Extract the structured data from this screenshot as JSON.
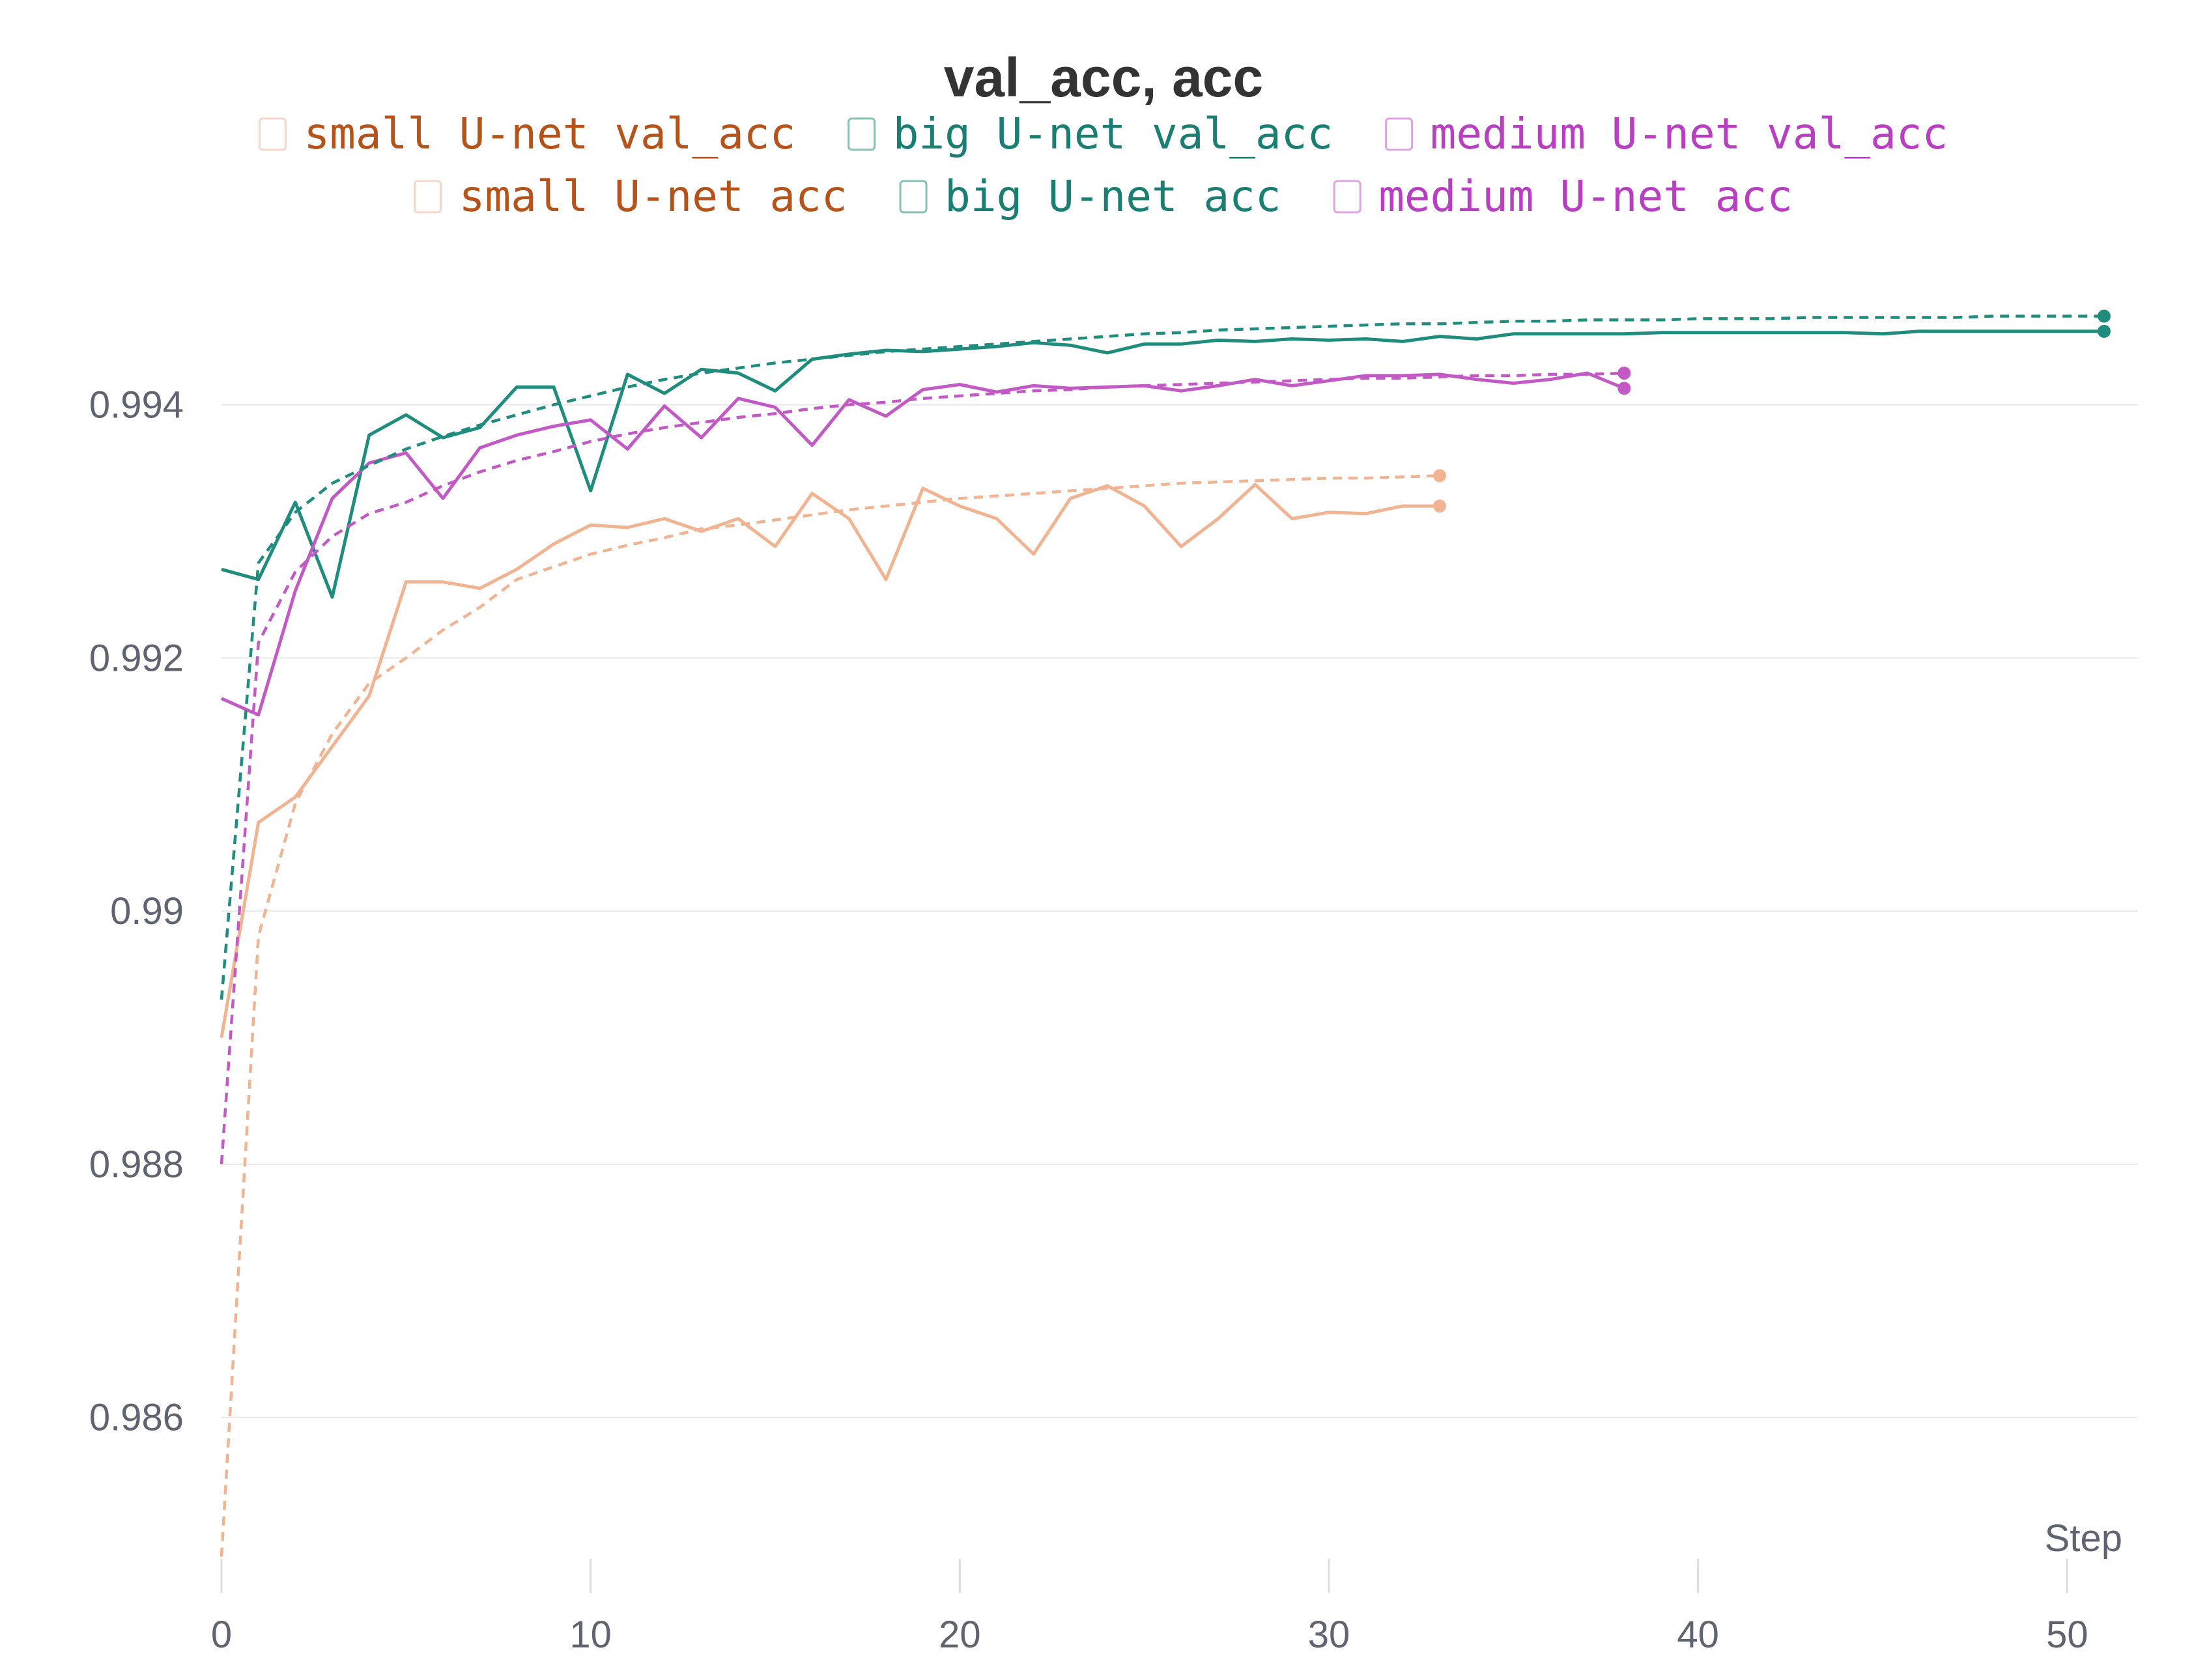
{
  "chart_data": {
    "type": "line",
    "title": "val_acc, acc",
    "xlabel": "Step",
    "ylabel": "",
    "xlim": [
      0,
      51
    ],
    "ylim": [
      0.9848,
      0.9955
    ],
    "x_ticks": [
      0,
      10,
      20,
      30,
      40,
      50
    ],
    "y_ticks": [
      0.986,
      0.988,
      0.99,
      0.992,
      0.994
    ],
    "y_tick_labels": [
      "0.986",
      "0.988",
      "0.99",
      "0.992",
      "0.994"
    ],
    "grid": "horizontal",
    "legend_position": "top",
    "series": [
      {
        "name": "small U-net val_acc",
        "color": "#f0b493",
        "text_color": "#b5531b",
        "dash": "solid",
        "x": [
          0,
          1,
          2,
          3,
          4,
          5,
          6,
          7,
          8,
          9,
          10,
          11,
          12,
          13,
          14,
          15,
          16,
          17,
          18,
          19,
          20,
          21,
          22,
          23,
          24,
          25,
          26,
          27,
          28,
          29,
          30,
          31,
          32,
          33
        ],
        "y": [
          0.989,
          0.9907,
          0.9909,
          0.9913,
          0.9917,
          0.9926,
          0.9926,
          0.99255,
          0.9927,
          0.9929,
          0.99305,
          0.99303,
          0.9931,
          0.993,
          0.9931,
          0.99288,
          0.9933,
          0.9931,
          0.99262,
          0.99334,
          0.9932,
          0.9931,
          0.99282,
          0.99326,
          0.99336,
          0.9932,
          0.99288,
          0.9931,
          0.99337,
          0.9931,
          0.99315,
          0.99314,
          0.9932,
          0.9932
        ]
      },
      {
        "name": "big U-net val_acc",
        "color": "#1f8c7e",
        "text_color": "#1a7f72",
        "dash": "solid",
        "x": [
          0,
          1,
          2,
          3,
          4,
          5,
          6,
          7,
          8,
          9,
          10,
          11,
          12,
          13,
          14,
          15,
          16,
          17,
          18,
          19,
          20,
          21,
          22,
          23,
          24,
          25,
          26,
          27,
          28,
          29,
          30,
          31,
          32,
          33,
          34,
          35,
          36,
          37,
          38,
          39,
          40,
          41,
          42,
          43,
          44,
          45,
          46,
          47,
          48,
          49,
          50,
          51
        ],
        "y": [
          0.9927,
          0.99262,
          0.99323,
          0.99248,
          0.99376,
          0.99392,
          0.99374,
          0.99382,
          0.99414,
          0.99414,
          0.99332,
          0.99424,
          0.99409,
          0.99428,
          0.99425,
          0.99411,
          0.99436,
          0.9944,
          0.99443,
          0.99442,
          0.99444,
          0.99446,
          0.99449,
          0.99447,
          0.99441,
          0.99448,
          0.99448,
          0.99451,
          0.9945,
          0.99452,
          0.99451,
          0.99452,
          0.9945,
          0.99454,
          0.99452,
          0.99456,
          0.99456,
          0.99456,
          0.99456,
          0.99457,
          0.99457,
          0.99457,
          0.99457,
          0.99457,
          0.99457,
          0.99456,
          0.99458,
          0.99458,
          0.99458,
          0.99458,
          0.99458,
          0.99458
        ]
      },
      {
        "name": "medium U-net val_acc",
        "color": "#c25ac6",
        "text_color": "#b83fc1",
        "dash": "solid",
        "x": [
          0,
          1,
          2,
          3,
          4,
          5,
          6,
          7,
          8,
          9,
          10,
          11,
          12,
          13,
          14,
          15,
          16,
          17,
          18,
          19,
          20,
          21,
          22,
          23,
          24,
          25,
          26,
          27,
          28,
          29,
          30,
          31,
          32,
          33,
          34,
          35,
          36,
          37,
          38
        ],
        "y": [
          0.99168,
          0.99155,
          0.99253,
          0.99326,
          0.99354,
          0.99362,
          0.99326,
          0.99366,
          0.99376,
          0.99383,
          0.99388,
          0.99365,
          0.99399,
          0.99374,
          0.99405,
          0.99398,
          0.99368,
          0.99404,
          0.99391,
          0.99412,
          0.99416,
          0.9941,
          0.99415,
          0.99413,
          0.99414,
          0.99415,
          0.99411,
          0.99415,
          0.9942,
          0.99415,
          0.99419,
          0.99423,
          0.99423,
          0.99424,
          0.9942,
          0.99417,
          0.9942,
          0.99425,
          0.99413
        ]
      },
      {
        "name": "small U-net acc",
        "color": "#f0b493",
        "text_color": "#b5531b",
        "dash": "dashed",
        "x": [
          0,
          1,
          2,
          3,
          4,
          5,
          6,
          7,
          8,
          9,
          10,
          11,
          12,
          13,
          14,
          15,
          16,
          17,
          18,
          19,
          20,
          21,
          22,
          23,
          24,
          25,
          26,
          27,
          28,
          29,
          30,
          31,
          32,
          33
        ],
        "y": [
          0.9849,
          0.9898,
          0.99085,
          0.9914,
          0.9918,
          0.992,
          0.99222,
          0.9924,
          0.99262,
          0.99272,
          0.99282,
          0.99289,
          0.99295,
          0.99302,
          0.99305,
          0.99309,
          0.99313,
          0.99317,
          0.9932,
          0.99323,
          0.99326,
          0.99328,
          0.9933,
          0.99332,
          0.99334,
          0.99336,
          0.99338,
          0.99339,
          0.9934,
          0.99341,
          0.99342,
          0.99342,
          0.99343,
          0.99344
        ]
      },
      {
        "name": "big U-net acc",
        "color": "#1f8c7e",
        "text_color": "#1a7f72",
        "dash": "dashed",
        "x": [
          0,
          1,
          2,
          3,
          4,
          5,
          6,
          7,
          8,
          9,
          10,
          11,
          12,
          13,
          14,
          15,
          16,
          17,
          18,
          19,
          20,
          21,
          22,
          23,
          24,
          25,
          26,
          27,
          28,
          29,
          30,
          31,
          32,
          33,
          34,
          35,
          36,
          37,
          38,
          39,
          40,
          41,
          42,
          43,
          44,
          45,
          46,
          47,
          48,
          49,
          50,
          51
        ],
        "y": [
          0.9893,
          0.99275,
          0.99315,
          0.99338,
          0.99352,
          0.99365,
          0.99375,
          0.99384,
          0.99392,
          0.994,
          0.99407,
          0.99414,
          0.9942,
          0.99425,
          0.99429,
          0.99433,
          0.99436,
          0.99439,
          0.99442,
          0.99444,
          0.99446,
          0.99448,
          0.9945,
          0.99452,
          0.99454,
          0.99456,
          0.99457,
          0.99459,
          0.9946,
          0.99461,
          0.99462,
          0.99463,
          0.99464,
          0.99464,
          0.99465,
          0.99466,
          0.99466,
          0.99467,
          0.99467,
          0.99467,
          0.99468,
          0.99468,
          0.99468,
          0.99469,
          0.99469,
          0.99469,
          0.99469,
          0.99469,
          0.9947,
          0.9947,
          0.9947,
          0.9947
        ]
      },
      {
        "name": "medium U-net acc",
        "color": "#c25ac6",
        "text_color": "#b83fc1",
        "dash": "dashed",
        "x": [
          0,
          1,
          2,
          3,
          4,
          5,
          6,
          7,
          8,
          9,
          10,
          11,
          12,
          13,
          14,
          15,
          16,
          17,
          18,
          19,
          20,
          21,
          22,
          23,
          24,
          25,
          26,
          27,
          28,
          29,
          30,
          31,
          32,
          33,
          34,
          35,
          36,
          37,
          38
        ],
        "y": [
          0.988,
          0.99212,
          0.99268,
          0.99296,
          0.99314,
          0.99323,
          0.99336,
          0.99347,
          0.99356,
          0.99363,
          0.99371,
          0.99377,
          0.99382,
          0.99386,
          0.9939,
          0.99393,
          0.99397,
          0.994,
          0.99402,
          0.99405,
          0.99407,
          0.99409,
          0.99411,
          0.99412,
          0.99414,
          0.99415,
          0.99416,
          0.99417,
          0.99418,
          0.99419,
          0.9942,
          0.99421,
          0.99421,
          0.99422,
          0.99423,
          0.99423,
          0.99424,
          0.99424,
          0.99425
        ]
      }
    ]
  }
}
